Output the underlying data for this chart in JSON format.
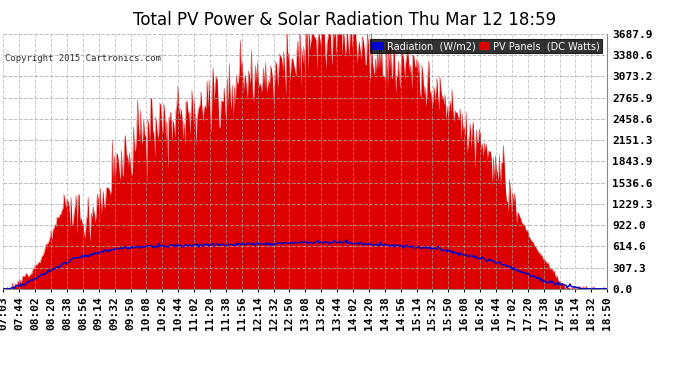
{
  "title": "Total PV Power & Solar Radiation Thu Mar 12 18:59",
  "copyright": "Copyright 2015 Cartronics.com",
  "background_color": "#ffffff",
  "plot_bg_color": "#ffffff",
  "grid_color": "#aaaaaa",
  "yticks": [
    0.0,
    307.3,
    614.6,
    922.0,
    1229.3,
    1536.6,
    1843.9,
    2151.3,
    2458.6,
    2765.9,
    3073.2,
    3380.6,
    3687.9
  ],
  "ymax": 3687.9,
  "ymin": 0.0,
  "pv_color": "#dd0000",
  "radiation_color": "#0000cc",
  "legend_radiation_bg": "#0000cc",
  "legend_pv_bg": "#dd0000",
  "title_fontsize": 12,
  "tick_label_fontsize": 8,
  "xtick_labels": [
    "07:03",
    "07:44",
    "08:02",
    "08:20",
    "08:38",
    "08:56",
    "09:14",
    "09:32",
    "09:50",
    "10:08",
    "10:26",
    "10:44",
    "11:02",
    "11:20",
    "11:38",
    "11:56",
    "12:14",
    "12:32",
    "12:50",
    "13:08",
    "13:26",
    "13:44",
    "14:02",
    "14:20",
    "14:38",
    "14:56",
    "15:14",
    "15:32",
    "15:50",
    "16:08",
    "16:26",
    "16:44",
    "17:02",
    "17:20",
    "17:38",
    "17:56",
    "18:14",
    "18:32",
    "18:50"
  ]
}
